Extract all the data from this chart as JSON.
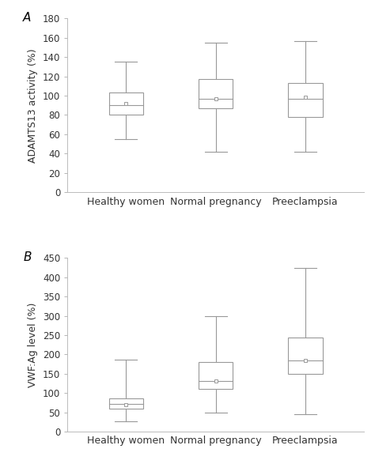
{
  "panel_A": {
    "label": "A",
    "ylabel": "ADAMTS13 activity (%)",
    "ylim": [
      0,
      180
    ],
    "yticks": [
      0,
      20,
      40,
      60,
      80,
      100,
      120,
      140,
      160,
      180
    ],
    "categories": [
      "Healthy women",
      "Normal pregnancy",
      "Preeclampsia"
    ],
    "boxes": [
      {
        "q1": 80,
        "median": 90,
        "q3": 103,
        "whisker_low": 55,
        "whisker_high": 135,
        "mean": 92
      },
      {
        "q1": 87,
        "median": 97,
        "q3": 117,
        "whisker_low": 42,
        "whisker_high": 155,
        "mean": 97
      },
      {
        "q1": 78,
        "median": 97,
        "q3": 113,
        "whisker_low": 42,
        "whisker_high": 157,
        "mean": 98
      }
    ]
  },
  "panel_B": {
    "label": "B",
    "ylabel": "VWF:Ag level (%)",
    "ylim": [
      0,
      450
    ],
    "yticks": [
      0,
      50,
      100,
      150,
      200,
      250,
      300,
      350,
      400,
      450
    ],
    "categories": [
      "Healthy women",
      "Normal pregnancy",
      "Preeclampsia"
    ],
    "boxes": [
      {
        "q1": 60,
        "median": 72,
        "q3": 85,
        "whisker_low": 27,
        "whisker_high": 187,
        "mean": 70
      },
      {
        "q1": 110,
        "median": 130,
        "q3": 180,
        "whisker_low": 50,
        "whisker_high": 300,
        "mean": 130
      },
      {
        "q1": 150,
        "median": 185,
        "q3": 243,
        "whisker_low": 45,
        "whisker_high": 425,
        "mean": 185
      }
    ]
  },
  "box_edge_color": "#999999",
  "whisker_color": "#999999",
  "median_color": "#999999",
  "mean_marker_color": "#999999",
  "background_color": "#ffffff",
  "label_fontsize": 9,
  "tick_fontsize": 8.5,
  "box_width": 0.38,
  "positions": [
    1,
    2,
    3
  ],
  "xlim": [
    0.35,
    3.65
  ]
}
